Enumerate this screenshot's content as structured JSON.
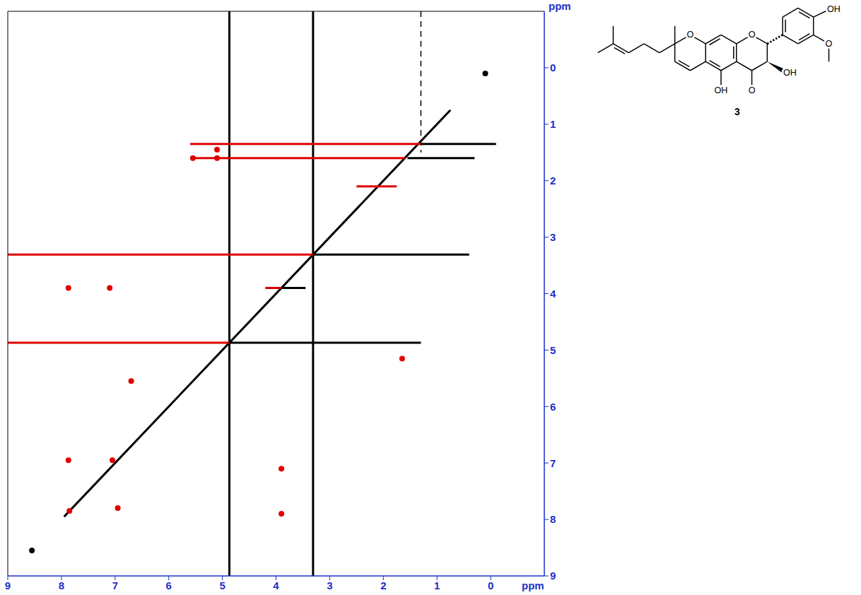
{
  "chart_data": {
    "type": "scatter",
    "xlabel": "ppm",
    "ylabel": "ppm",
    "xlim": [
      9,
      -1
    ],
    "xticks": [
      9,
      8,
      7,
      6,
      5,
      4,
      3,
      2,
      1,
      0
    ],
    "ylim": [
      9,
      -1
    ],
    "yticks": [
      0,
      1,
      2,
      3,
      4,
      5,
      6,
      7,
      8,
      9
    ],
    "series": [
      {
        "type": "line",
        "color": "#000000",
        "line_style": "solid",
        "x": [
          7.95,
          0.75
        ],
        "values": [
          7.95,
          0.75
        ]
      },
      {
        "type": "line",
        "color": "#000000",
        "line_style": "solid",
        "x": [
          4.87,
          4.87,
          4.87,
          3.31,
          3.31
        ],
        "values": [
          -1,
          9,
          null,
          -1,
          9
        ]
      },
      {
        "type": "line",
        "color": "#000000",
        "line_style": "dashed",
        "x": [
          1.3,
          1.3
        ],
        "values": [
          -1,
          1.5
        ]
      },
      {
        "type": "line",
        "color": "#e00000",
        "line_style": "solid",
        "x": [
          9,
          4.87,
          4.87,
          9,
          3.31,
          3.31,
          5.6,
          1.3,
          1.3,
          5.6,
          1.6,
          1.6,
          2.5,
          1.75,
          1.75,
          4.2,
          3.9
        ],
        "values": [
          4.87,
          4.87,
          null,
          3.31,
          3.31,
          null,
          1.35,
          1.35,
          null,
          1.6,
          1.6,
          null,
          2.1,
          2.1,
          null,
          3.9,
          3.9
        ]
      },
      {
        "type": "line",
        "color": "#000000",
        "line_style": "solid",
        "x": [
          4.87,
          1.3,
          1.3,
          3.31,
          0.4,
          0.4,
          1.3,
          -0.1,
          -0.1,
          1.55,
          0.3,
          0.3,
          3.9,
          3.45
        ],
        "values": [
          4.87,
          4.87,
          null,
          3.31,
          3.31,
          null,
          1.35,
          1.35,
          null,
          1.6,
          1.6,
          null,
          3.9,
          3.9
        ]
      },
      {
        "type": "scatter",
        "color": "#e00000",
        "marker": "circle",
        "x": [
          7.87,
          6.95,
          7.1,
          7.87,
          3.9,
          3.9,
          6.7,
          5.55,
          5.1,
          5.1,
          1.65,
          7.05,
          7.85
        ],
        "values": [
          6.95,
          7.8,
          3.9,
          3.9,
          7.1,
          7.9,
          5.55,
          1.6,
          1.6,
          1.45,
          5.15,
          6.95,
          7.85
        ]
      },
      {
        "type": "scatter",
        "color": "#000000",
        "marker": "circle",
        "x": [
          8.55,
          0.1
        ],
        "values": [
          8.55,
          0.1
        ]
      }
    ]
  },
  "structure": {
    "compound_label": "3",
    "atom_labels": [
      "O",
      "O",
      "OH",
      "O",
      "OH",
      "OH",
      "O"
    ]
  }
}
